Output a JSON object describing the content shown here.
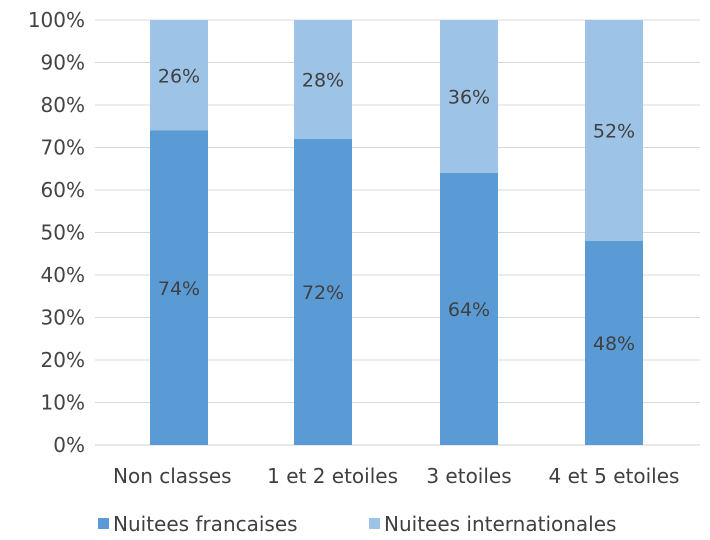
{
  "chart_data": {
    "type": "bar",
    "stacked": true,
    "percent_stacked": true,
    "categories": [
      "Non classes",
      "1 et 2 etoiles",
      "3 etoiles",
      "4 et 5 etoiles"
    ],
    "series": [
      {
        "name": "Nuitees francaises",
        "values": [
          74,
          72,
          64,
          48
        ],
        "color": "#5b9bd5"
      },
      {
        "name": "Nuitees internationales",
        "values": [
          26,
          28,
          36,
          52
        ],
        "color": "#9dc3e6"
      }
    ],
    "data_labels": [
      [
        "74%",
        "72%",
        "64%",
        "48%"
      ],
      [
        "26%",
        "28%",
        "36%",
        "52%"
      ]
    ],
    "y_ticks": [
      "0%",
      "10%",
      "20%",
      "30%",
      "40%",
      "50%",
      "60%",
      "70%",
      "80%",
      "90%",
      "100%"
    ],
    "ylim": [
      0,
      100
    ],
    "grid": true,
    "legend_position": "bottom",
    "title": "",
    "xlabel": "",
    "ylabel": ""
  }
}
